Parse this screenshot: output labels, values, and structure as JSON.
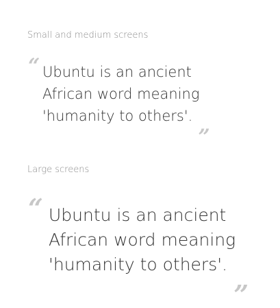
{
  "sections": [
    {
      "label": "Small and medium screens",
      "quote_lines": [
        "Ubuntu is an ancient",
        "African word meaning",
        "'humanity to others'."
      ],
      "open_mark": "“",
      "close_mark": "„"
    },
    {
      "label": "Large screens",
      "quote_lines": [
        "Ubuntu is an ancient",
        "African word meaning",
        "'humanity to others'."
      ],
      "open_mark": "“",
      "close_mark": "„"
    }
  ],
  "colors": {
    "text": "#333333",
    "label": "#8a8a8a",
    "quote_mark": "#c7c7c7"
  }
}
